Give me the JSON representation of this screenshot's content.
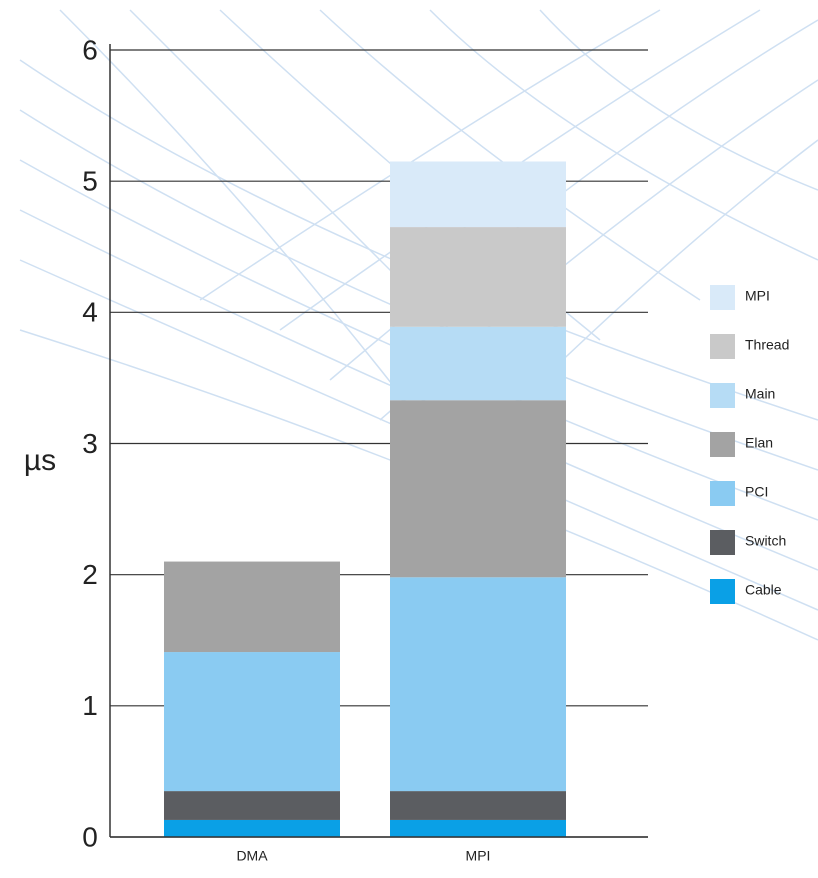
{
  "chart_data": {
    "type": "stacked_bar",
    "y_label": "µs",
    "categories": [
      "DMA",
      "MPI"
    ],
    "series": [
      {
        "name": "Cable",
        "color": "#0aa0e6",
        "values": [
          0.13,
          0.13
        ]
      },
      {
        "name": "Switch",
        "color": "#5b5d61",
        "values": [
          0.22,
          0.22
        ]
      },
      {
        "name": "PCI",
        "color": "#8acbf2",
        "values": [
          1.06,
          1.63
        ]
      },
      {
        "name": "Elan",
        "color": "#a3a3a3",
        "values": [
          0.69,
          1.35
        ]
      },
      {
        "name": "Main",
        "color": "#b6dcf5",
        "values": [
          null,
          0.56
        ]
      },
      {
        "name": "Thread",
        "color": "#c9c9c9",
        "values": [
          null,
          0.76
        ]
      },
      {
        "name": "MPI",
        "color": "#d9eaf9",
        "values": [
          null,
          0.5
        ]
      }
    ],
    "ylim": [
      0,
      6
    ],
    "yticks": [
      0,
      1,
      2,
      3,
      4,
      5,
      6
    ],
    "grid": true,
    "legend": "right"
  }
}
